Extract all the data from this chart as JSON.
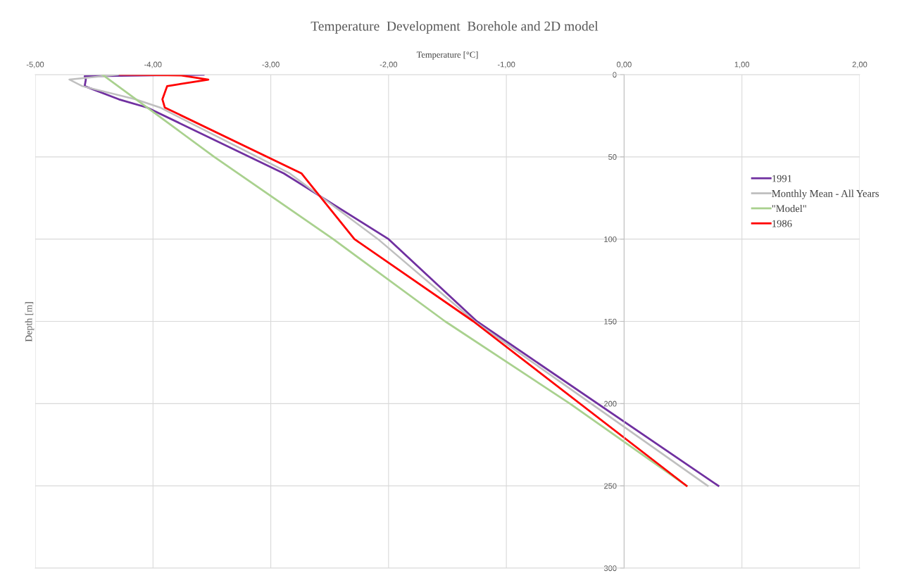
{
  "chart_data": {
    "type": "line",
    "title": "Temperature  Development  Borehole and 2D model",
    "xlabel": "Temperature [°C]",
    "ylabel": "Depth [m]",
    "series": [
      {
        "name": "1991",
        "color": "#7030a0",
        "x": [
          -3.57,
          -4.58,
          -4.57,
          -4.58,
          -4.29,
          -4.05,
          -2.89,
          -2.0,
          -1.25,
          0.8
        ],
        "values": [
          0,
          1,
          3,
          7,
          15,
          20,
          60,
          100,
          150,
          250
        ]
      },
      {
        "name": "Monthly Mean - All Years",
        "color": "#bfbfbf",
        "x": [
          -4.3,
          -4.71,
          -4.6,
          -4.15,
          -3.94,
          -2.84,
          -2.09,
          -1.27,
          0.71
        ],
        "values": [
          0,
          3,
          7,
          15,
          20,
          60,
          100,
          150,
          250
        ]
      },
      {
        "name": "\"Model\"",
        "color": "#a9d18e",
        "x": [
          -4.43,
          -3.48,
          -2.47,
          -1.52,
          -0.46,
          0.53
        ],
        "values": [
          0,
          50,
          100,
          150,
          200,
          250
        ]
      },
      {
        "name": "1986",
        "color": "#ff0000",
        "x": [
          -4.28,
          -3.76,
          -3.53,
          -3.88,
          -3.92,
          -3.9,
          -2.74,
          -2.29,
          -1.28,
          0.53
        ],
        "values": [
          0,
          0.5,
          3,
          7,
          15,
          20,
          60,
          100,
          150,
          250
        ]
      }
    ],
    "xlim": [
      -5,
      2
    ],
    "xticks": [
      {
        "value": -5,
        "label": "-5,00"
      },
      {
        "value": -4,
        "label": "-4,00"
      },
      {
        "value": -3,
        "label": "-3,00"
      },
      {
        "value": -2,
        "label": "-2,00"
      },
      {
        "value": -1,
        "label": "-1,00"
      },
      {
        "value": 0,
        "label": "0,00"
      },
      {
        "value": 1,
        "label": "1,00"
      },
      {
        "value": 2,
        "label": "2,00"
      }
    ],
    "ylim": [
      300,
      0
    ],
    "yticks": [
      0,
      50,
      100,
      150,
      200,
      250,
      300
    ],
    "grid": true,
    "legend": "right",
    "line_style": "solid",
    "marker": "none"
  }
}
